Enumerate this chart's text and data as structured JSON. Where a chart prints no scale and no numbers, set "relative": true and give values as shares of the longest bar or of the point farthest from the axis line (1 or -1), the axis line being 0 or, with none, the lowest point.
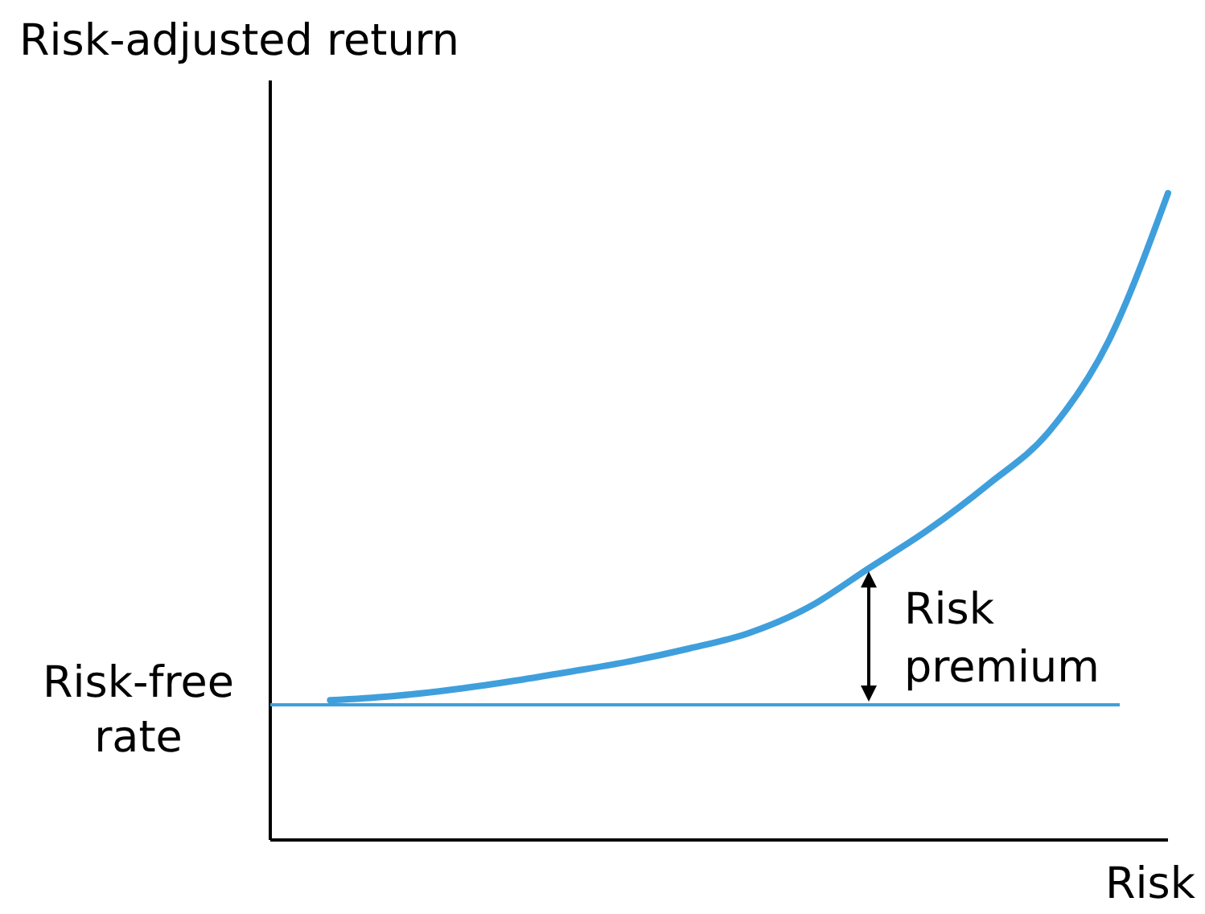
{
  "chart_data": {
    "type": "line",
    "relative": true,
    "ylabel": "Risk-adjusted return",
    "xlabel": "Risk",
    "categories": [
      null,
      null,
      null,
      null,
      null,
      null,
      null,
      null,
      null,
      null,
      null,
      null,
      null,
      null,
      null,
      null
    ],
    "series": [
      {
        "color": "#3f9fdc",
        "values": [
          null,
          0.216,
          0.222,
          0.232,
          0.245,
          0.26,
          0.276,
          0.296,
          0.32,
          0.36,
          0.42,
          0.48,
          0.55,
          0.63,
          0.77,
          1.0
        ]
      }
    ],
    "ref_lines": [
      {
        "axis": "y",
        "value": 0.209,
        "label": "Risk-free rate",
        "color": "#3f9fdc"
      }
    ],
    "annotations": [
      "Risk premium"
    ]
  }
}
